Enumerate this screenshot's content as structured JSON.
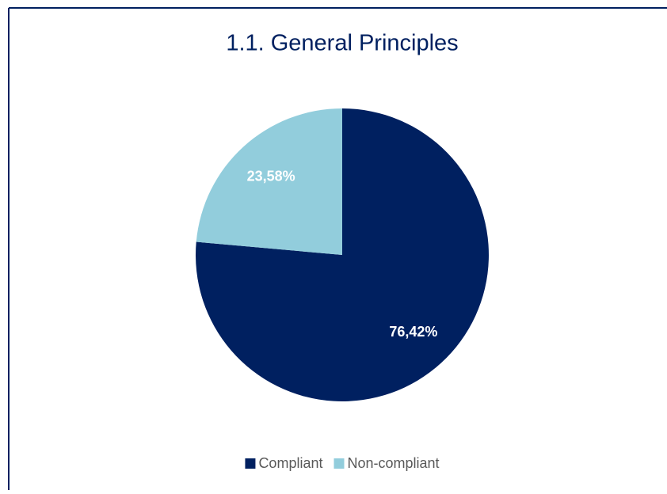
{
  "chart_data": {
    "type": "pie",
    "title": "1.1. General Principles",
    "categories": [
      "Compliant",
      "Non-compliant"
    ],
    "values": [
      76.42,
      23.58
    ],
    "value_labels": [
      "76,42%",
      "23,58%"
    ],
    "colors": [
      "#002060",
      "#92cddc"
    ],
    "legend": "bottom"
  }
}
